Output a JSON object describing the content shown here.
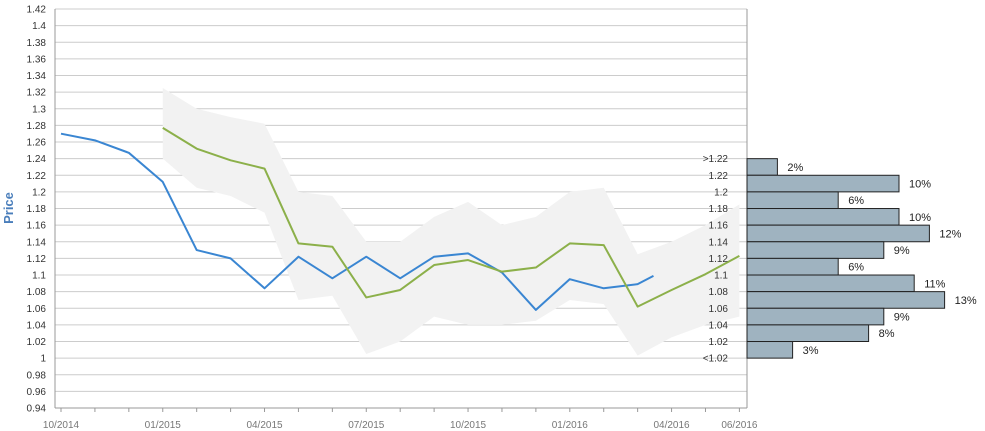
{
  "chart_data": {
    "type": "line",
    "ylabel": "Price",
    "ylim": [
      0.94,
      1.42
    ],
    "yticks": [
      "1.42",
      "1.4",
      "1.38",
      "1.36",
      "1.34",
      "1.32",
      "1.3",
      "1.28",
      "1.26",
      "1.24",
      "1.22",
      "1.2",
      "1.18",
      "1.16",
      "1.14",
      "1.12",
      "1.1",
      "1.08",
      "1.06",
      "1.04",
      "1.02",
      "1",
      "0.98",
      "0.96",
      "0.94"
    ],
    "xtick_labels": [
      "10/2014",
      "01/2015",
      "04/2015",
      "07/2015",
      "10/2015",
      "01/2016",
      "04/2016",
      "06/2016"
    ],
    "grid": true,
    "colors": {
      "actual": "#3a86d2",
      "forecast": "#8cb04a",
      "band": "#f2f2f2",
      "bar_fill": "#9fb3c0",
      "bar_stroke": "#222222",
      "grid": "#cccccc"
    },
    "series": [
      {
        "x": [
          "2014-10",
          "2014-11",
          "2014-12",
          "2015-01",
          "2015-02",
          "2015-03",
          "2015-04",
          "2015-05",
          "2015-06",
          "2015-07",
          "2015-08",
          "2015-09",
          "2015-10",
          "2015-11",
          "2015-12",
          "2016-01",
          "2016-02",
          "2016-03",
          "2016-03-15"
        ],
        "values": [
          1.27,
          1.262,
          1.247,
          1.212,
          1.13,
          1.12,
          1.084,
          1.122,
          1.096,
          1.122,
          1.096,
          1.122,
          1.126,
          1.103,
          1.058,
          1.095,
          1.084,
          1.089,
          1.099
        ]
      },
      {
        "x": [
          "2015-01",
          "2015-02",
          "2015-03",
          "2015-04",
          "2015-05",
          "2015-06",
          "2015-07",
          "2015-08",
          "2015-09",
          "2015-10",
          "2015-11",
          "2015-12",
          "2016-01",
          "2016-02",
          "2016-03",
          "2016-04",
          "2016-05",
          "2016-06"
        ],
        "values": [
          1.277,
          1.252,
          1.238,
          1.228,
          1.138,
          1.134,
          1.073,
          1.082,
          1.112,
          1.118,
          1.104,
          1.109,
          1.138,
          1.136,
          1.062,
          1.082,
          1.101,
          1.123
        ]
      }
    ],
    "band": {
      "x": [
        "2015-01",
        "2015-02",
        "2015-03",
        "2015-04",
        "2015-05",
        "2015-06",
        "2015-07",
        "2015-08",
        "2015-09",
        "2015-10",
        "2015-11",
        "2015-12",
        "2016-01",
        "2016-02",
        "2016-03",
        "2016-04",
        "2016-05",
        "2016-06"
      ],
      "upper": [
        1.325,
        1.3,
        1.29,
        1.282,
        1.2,
        1.195,
        1.14,
        1.14,
        1.17,
        1.188,
        1.16,
        1.17,
        1.2,
        1.205,
        1.125,
        1.14,
        1.16,
        1.185
      ],
      "lower": [
        1.24,
        1.205,
        1.195,
        1.175,
        1.07,
        1.075,
        1.005,
        1.02,
        1.05,
        1.04,
        1.04,
        1.045,
        1.07,
        1.065,
        1.003,
        1.025,
        1.04,
        1.05
      ]
    },
    "distribution": {
      "labels": [
        ">1.22",
        "1.22",
        "1.2",
        "1.18",
        "1.16",
        "1.14",
        "1.12",
        "1.1",
        "1.08",
        "1.06",
        "1.04",
        "1.02",
        "<1.02"
      ],
      "bin_values": [
        1.24,
        1.22,
        1.2,
        1.18,
        1.16,
        1.14,
        1.12,
        1.1,
        1.08,
        1.06,
        1.04,
        1.02,
        1.0
      ],
      "percents": [
        null,
        2,
        10,
        6,
        10,
        12,
        9,
        6,
        11,
        13,
        9,
        8,
        3
      ],
      "percent_labels": [
        null,
        "2%",
        "10%",
        "6%",
        "10%",
        "12%",
        "9%",
        "6%",
        "11%",
        "13%",
        "9%",
        "8%",
        "3%"
      ]
    }
  }
}
